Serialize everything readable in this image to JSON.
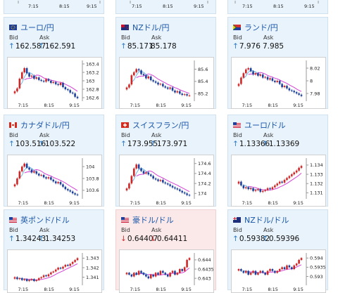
{
  "top_row_times": [
    "7:15",
    "8:15",
    "9:15"
  ],
  "colors": {
    "up": "#d02626",
    "down": "#1a3f9c",
    "ma": "#d442d4",
    "ma2": "#6fb8e6"
  },
  "labels": {
    "bid": "Bid",
    "ask": "Ask"
  },
  "cards": [
    {
      "pair": "ユーロ/円",
      "flag": "eu-flag",
      "bid": "162.587",
      "ask": "162.591",
      "dir": "up",
      "chart_data": {
        "type": "candlestick",
        "xticks": [
          "7:15",
          "8:15",
          "9:15"
        ],
        "yticks": [
          "163.4",
          "163.2",
          "163",
          "162.8",
          "162.6"
        ],
        "ylim": [
          162.55,
          163.45
        ],
        "close": [
          162.75,
          162.82,
          163.05,
          163.2,
          163.3,
          163.18,
          163.1,
          163.12,
          163.05,
          163.08,
          163.02,
          163.0,
          162.98,
          163.04,
          163.0,
          162.95,
          162.97,
          162.92,
          162.9,
          162.95,
          162.85,
          162.8,
          162.78,
          162.72,
          162.7,
          162.62,
          162.59
        ]
      }
    },
    {
      "pair": "NZドル/円",
      "flag": "nz-flag",
      "bid": "85.171",
      "ask": "85.178",
      "dir": "up",
      "chart_data": {
        "type": "candlestick",
        "xticks": [
          "7:15",
          "8:15",
          "9:15"
        ],
        "yticks": [
          "85.6",
          "85.4",
          "85.2"
        ],
        "ylim": [
          85.1,
          85.72
        ],
        "close": [
          85.3,
          85.35,
          85.5,
          85.55,
          85.6,
          85.58,
          85.52,
          85.5,
          85.45,
          85.48,
          85.42,
          85.4,
          85.38,
          85.35,
          85.36,
          85.32,
          85.3,
          85.28,
          85.3,
          85.25,
          85.22,
          85.24,
          85.2,
          85.18,
          85.19,
          85.17,
          85.17
        ]
      }
    },
    {
      "pair": "ランド/円",
      "flag": "za-flag",
      "bid": "7.976",
      "ask": "7.985",
      "dir": "up",
      "chart_data": {
        "type": "candlestick",
        "xticks": [
          "7:15",
          "8:15",
          "9:15"
        ],
        "yticks": [
          "8.02",
          "8",
          "7.98"
        ],
        "ylim": [
          7.97,
          8.03
        ],
        "close": [
          7.995,
          8.005,
          8.012,
          8.018,
          8.02,
          8.015,
          8.01,
          8.012,
          8.008,
          8.01,
          8.005,
          8.006,
          8.002,
          8.004,
          8.0,
          7.998,
          8.0,
          7.995,
          7.99,
          7.992,
          7.988,
          7.985,
          7.984,
          7.982,
          7.98,
          7.978,
          7.976
        ]
      }
    },
    {
      "pair": "カナダドル/円",
      "flag": "ca-flag",
      "bid": "103.516",
      "ask": "103.522",
      "dir": "up",
      "chart_data": {
        "type": "candlestick",
        "xticks": [
          "7:15",
          "8:15",
          "9:15"
        ],
        "yticks": [
          "104",
          "103.8",
          "103.6"
        ],
        "ylim": [
          103.48,
          104.12
        ],
        "close": [
          103.7,
          103.8,
          103.92,
          104.0,
          104.05,
          103.98,
          103.95,
          103.9,
          103.92,
          103.88,
          103.85,
          103.86,
          103.82,
          103.8,
          103.82,
          103.78,
          103.75,
          103.72,
          103.74,
          103.7,
          103.66,
          103.62,
          103.6,
          103.58,
          103.55,
          103.53,
          103.52
        ]
      }
    },
    {
      "pair": "スイスフラン/円",
      "flag": "ch-flag",
      "bid": "173.955",
      "ask": "173.971",
      "dir": "up",
      "chart_data": {
        "type": "candlestick",
        "xticks": [
          "7:15",
          "8:15",
          "9:15"
        ],
        "yticks": [
          "174.6",
          "174.4",
          "174.2",
          "174"
        ],
        "ylim": [
          173.92,
          174.68
        ],
        "close": [
          174.1,
          174.2,
          174.35,
          174.5,
          174.58,
          174.5,
          174.45,
          174.4,
          174.42,
          174.38,
          174.35,
          174.3,
          174.28,
          174.25,
          174.27,
          174.22,
          174.2,
          174.18,
          174.15,
          174.12,
          174.1,
          174.08,
          174.05,
          174.02,
          174.0,
          173.97,
          173.96
        ]
      }
    },
    {
      "pair": "ユーロ/ドル",
      "flag": "eu-us-flag",
      "bid": "1.13366",
      "ask": "1.13369",
      "dir": "up",
      "chart_data": {
        "type": "candlestick",
        "xticks": [
          "7:15",
          "8:15",
          "9:15"
        ],
        "yticks": [
          "1.134",
          "1.133",
          "1.132",
          "1.131"
        ],
        "ylim": [
          1.1305,
          1.1346
        ],
        "close": [
          1.1322,
          1.1318,
          1.1315,
          1.1316,
          1.1314,
          1.1315,
          1.1312,
          1.1313,
          1.1314,
          1.1311,
          1.1312,
          1.1313,
          1.1315,
          1.1314,
          1.1316,
          1.1318,
          1.132,
          1.1322,
          1.1321,
          1.1324,
          1.1326,
          1.1328,
          1.133,
          1.1332,
          1.1334,
          1.1337,
          1.1339
        ]
      }
    },
    {
      "pair": "英ポンド/ドル",
      "flag": "gb-us-flag",
      "bid": "1.34243",
      "ask": "1.34253",
      "dir": "up",
      "chart_data": {
        "type": "candlestick",
        "xticks": [
          "7:15",
          "8:15",
          "9:15"
        ],
        "yticks": [
          "1.343",
          "1.342",
          "1.341"
        ],
        "ylim": [
          1.3403,
          1.3434
        ],
        "close": [
          1.341,
          1.3408,
          1.3409,
          1.3407,
          1.3408,
          1.3406,
          1.3407,
          1.3408,
          1.3406,
          1.3407,
          1.3409,
          1.341,
          1.3412,
          1.3411,
          1.3413,
          1.3415,
          1.3416,
          1.3418,
          1.342,
          1.3419,
          1.3421,
          1.3423,
          1.3422,
          1.3424,
          1.3426,
          1.3428,
          1.343
        ]
      }
    },
    {
      "pair": "豪ドル/ドル",
      "flag": "au-us-flag",
      "bid": "0.64407",
      "ask": "0.64411",
      "dir": "down",
      "pink": true,
      "chart_data": {
        "type": "candlestick",
        "xticks": [
          "7:15",
          "8:15",
          "9:15"
        ],
        "yticks": [
          "0.644",
          "0.6435",
          "0.643"
        ],
        "ylim": [
          0.6427,
          0.6443
        ],
        "close": [
          0.6433,
          0.6432,
          0.6431,
          0.6433,
          0.6432,
          0.6434,
          0.6433,
          0.6432,
          0.6431,
          0.643,
          0.6432,
          0.6431,
          0.6433,
          0.6432,
          0.6434,
          0.6433,
          0.6432,
          0.6431,
          0.6433,
          0.6434,
          0.6432,
          0.6433,
          0.6435,
          0.6434,
          0.6436,
          0.644,
          0.6441
        ]
      }
    },
    {
      "pair": "NZドル/ドル",
      "flag": "nz-us-flag",
      "bid": "0.59382",
      "ask": "0.59396",
      "dir": "up",
      "chart_data": {
        "type": "candlestick",
        "xticks": [
          "7:15",
          "8:15",
          "9:15"
        ],
        "yticks": [
          "0.594",
          "0.5935",
          "0.593"
        ],
        "ylim": [
          0.5926,
          0.5942
        ],
        "close": [
          0.5934,
          0.5933,
          0.5932,
          0.5933,
          0.5931,
          0.5932,
          0.5933,
          0.5931,
          0.5932,
          0.5933,
          0.5932,
          0.5931,
          0.5933,
          0.5934,
          0.5933,
          0.5932,
          0.5933,
          0.5934,
          0.5935,
          0.5934,
          0.5936,
          0.5935,
          0.5934,
          0.5936,
          0.5937,
          0.5939,
          0.594
        ]
      }
    }
  ]
}
